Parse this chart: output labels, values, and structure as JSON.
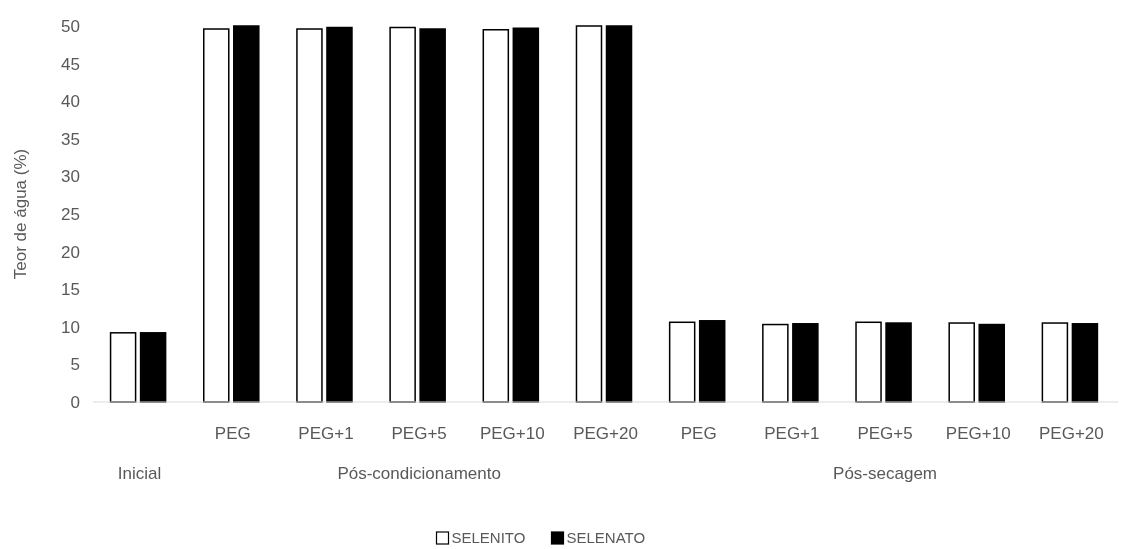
{
  "chart_data": {
    "type": "bar",
    "ylabel": "Teor de água (%)",
    "categories": [
      null,
      "PEG",
      "PEG+1",
      "PEG+5",
      "PEG+10",
      "PEG+20",
      "PEG",
      "PEG+1",
      "PEG+5",
      "PEG+10",
      "PEG+20"
    ],
    "series": [
      {
        "name": "SELENITO",
        "color": "#ffffff",
        "values": [
          9.2,
          49.6,
          49.6,
          49.8,
          49.5,
          50,
          10.6,
          10.3,
          10.6,
          10.5,
          10.5
        ]
      },
      {
        "name": "SELENATO",
        "color": "#000000",
        "values": [
          9.2,
          50,
          49.8,
          49.6,
          49.7,
          50,
          10.8,
          10.4,
          10.5,
          10.3,
          10.4
        ]
      }
    ],
    "annotations": [
      "Inicial",
      "Pós-condicionamento",
      "Pós-secagem"
    ],
    "ylim": [
      0,
      50
    ],
    "yticks": [
      0,
      5,
      10,
      15,
      20,
      25,
      30,
      35,
      40,
      45,
      50
    ],
    "grid": false,
    "legend": "bottom"
  }
}
